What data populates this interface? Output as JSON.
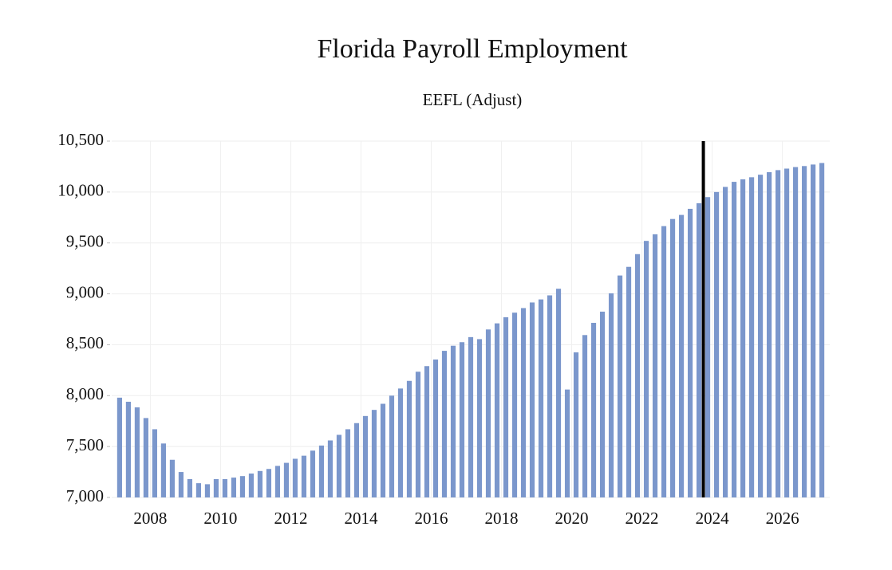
{
  "chart_data": {
    "type": "bar",
    "title": "Florida Payroll Employment",
    "subtitle": "EEFL (Adjust)",
    "x": [
      2007.625,
      2007.875,
      2008.125,
      2008.375,
      2008.625,
      2008.875,
      2009.125,
      2009.375,
      2009.625,
      2009.875,
      2010.125,
      2010.375,
      2010.625,
      2010.875,
      2011.125,
      2011.375,
      2011.625,
      2011.875,
      2012.125,
      2012.375,
      2012.625,
      2012.875,
      2013.125,
      2013.375,
      2013.625,
      2013.875,
      2014.125,
      2014.375,
      2014.625,
      2014.875,
      2015.125,
      2015.375,
      2015.625,
      2015.875,
      2016.125,
      2016.375,
      2016.625,
      2016.875,
      2017.125,
      2017.375,
      2017.625,
      2017.875,
      2018.125,
      2018.375,
      2018.625,
      2018.875,
      2019.125,
      2019.375,
      2019.625,
      2019.875,
      2020.125,
      2020.375,
      2020.625,
      2020.875,
      2021.125,
      2021.375,
      2021.625,
      2021.875,
      2022.125,
      2022.375,
      2022.625,
      2022.875,
      2023.125,
      2023.375,
      2023.625,
      2023.875,
      2024.125,
      2024.375,
      2024.625,
      2024.875,
      2025.125,
      2025.375,
      2025.625,
      2025.875,
      2026.125,
      2026.375,
      2026.625,
      2026.875,
      2027.125,
      2027.375,
      2027.625
    ],
    "values": [
      7980,
      7940,
      7885,
      7780,
      7670,
      7530,
      7370,
      7250,
      7180,
      7140,
      7130,
      7180,
      7180,
      7195,
      7210,
      7235,
      7260,
      7280,
      7310,
      7340,
      7380,
      7410,
      7460,
      7510,
      7560,
      7615,
      7670,
      7730,
      7800,
      7860,
      7920,
      8000,
      8070,
      8145,
      8235,
      8290,
      8355,
      8440,
      8490,
      8525,
      8575,
      8555,
      8650,
      8710,
      8770,
      8815,
      8860,
      8915,
      8945,
      8985,
      9050,
      8060,
      8425,
      8595,
      8715,
      8825,
      9005,
      9180,
      9265,
      9390,
      9520,
      9585,
      9665,
      9735,
      9775,
      9835,
      9890,
      9950,
      10000,
      10050,
      10100,
      10125,
      10145,
      10170,
      10195,
      10215,
      10230,
      10245,
      10255,
      10270,
      10285
    ],
    "color": "#7b97cc",
    "xlim": [
      2007.4,
      2027.85
    ],
    "xticks": [
      {
        "value": 2008.5,
        "label": "2008"
      },
      {
        "value": 2010.5,
        "label": "2010"
      },
      {
        "value": 2012.5,
        "label": "2012"
      },
      {
        "value": 2014.5,
        "label": "2014"
      },
      {
        "value": 2016.5,
        "label": "2016"
      },
      {
        "value": 2018.5,
        "label": "2018"
      },
      {
        "value": 2020.5,
        "label": "2020"
      },
      {
        "value": 2022.5,
        "label": "2022"
      },
      {
        "value": 2024.5,
        "label": "2024"
      },
      {
        "value": 2026.5,
        "label": "2026"
      }
    ],
    "ylim": [
      7000,
      10500
    ],
    "yticks": [
      {
        "value": 7000,
        "label": "7,000"
      },
      {
        "value": 7500,
        "label": "7,500"
      },
      {
        "value": 8000,
        "label": "8,000"
      },
      {
        "value": 8500,
        "label": "8,500"
      },
      {
        "value": 9000,
        "label": "9,000"
      },
      {
        "value": 9500,
        "label": "9,500"
      },
      {
        "value": 10000,
        "label": "10,000"
      },
      {
        "value": 10500,
        "label": "10,500"
      }
    ],
    "grid": true,
    "vline": 2024.25,
    "vline_color": "#000000"
  }
}
